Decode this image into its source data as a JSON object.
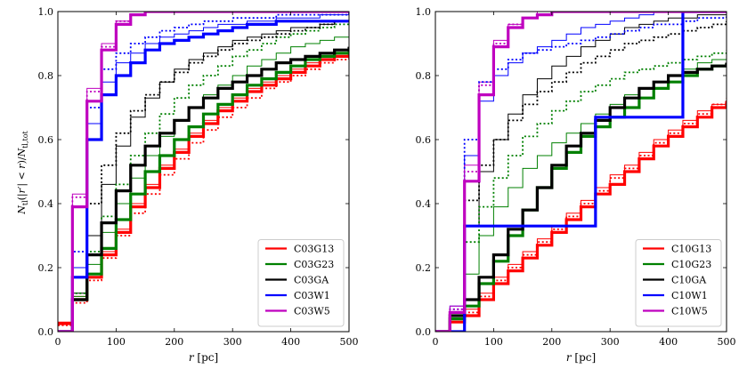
{
  "chart_data": [
    {
      "type": "line",
      "panel": "left",
      "ylabel": "N_tl(|r'| < r)/N_tl,tot",
      "xlabel": "r [pc]",
      "xlim": [
        0,
        500
      ],
      "ylim": [
        0,
        1.0
      ],
      "xticks": [
        "0",
        "100",
        "200",
        "300",
        "400",
        "500"
      ],
      "yticks": [
        "0.0",
        "0.2",
        "0.4",
        "0.6",
        "0.8",
        "1.0"
      ],
      "legend_position": "lower-right",
      "series": [
        {
          "name": "C03G13",
          "color": "#ff0000",
          "x": [
            0,
            25,
            50,
            75,
            100,
            125,
            150,
            175,
            200,
            225,
            250,
            275,
            300,
            325,
            350,
            375,
            400,
            425,
            450,
            475,
            500
          ],
          "thick": [
            0.025,
            0.1,
            0.17,
            0.24,
            0.31,
            0.39,
            0.45,
            0.51,
            0.56,
            0.61,
            0.65,
            0.69,
            0.72,
            0.75,
            0.77,
            0.79,
            0.81,
            0.83,
            0.85,
            0.86,
            0.87
          ],
          "dotted": [
            0.02,
            0.09,
            0.16,
            0.23,
            0.3,
            0.37,
            0.43,
            0.49,
            0.54,
            0.59,
            0.63,
            0.67,
            0.7,
            0.73,
            0.76,
            0.78,
            0.8,
            0.82,
            0.84,
            0.85,
            0.86
          ],
          "thin": [
            0.03,
            0.11,
            0.18,
            0.25,
            0.32,
            0.4,
            0.46,
            0.52,
            0.57,
            0.62,
            0.66,
            0.7,
            0.73,
            0.76,
            0.78,
            0.8,
            0.82,
            0.84,
            0.85,
            0.87,
            0.88
          ]
        },
        {
          "name": "C03G23",
          "color": "#008000",
          "x": [
            0,
            25,
            50,
            75,
            100,
            125,
            150,
            175,
            200,
            225,
            250,
            275,
            300,
            325,
            350,
            375,
            400,
            425,
            450,
            475,
            500
          ],
          "thick": [
            0.0,
            0.1,
            0.18,
            0.26,
            0.35,
            0.43,
            0.5,
            0.55,
            0.6,
            0.64,
            0.68,
            0.71,
            0.74,
            0.77,
            0.79,
            0.81,
            0.83,
            0.85,
            0.86,
            0.87,
            0.88
          ],
          "dotted": [
            0.0,
            0.12,
            0.25,
            0.36,
            0.46,
            0.55,
            0.62,
            0.68,
            0.73,
            0.77,
            0.8,
            0.83,
            0.86,
            0.88,
            0.9,
            0.92,
            0.93,
            0.94,
            0.95,
            0.96,
            0.97
          ],
          "thin": [
            0.0,
            0.11,
            0.21,
            0.31,
            0.4,
            0.48,
            0.55,
            0.61,
            0.66,
            0.7,
            0.74,
            0.77,
            0.8,
            0.83,
            0.85,
            0.87,
            0.89,
            0.9,
            0.91,
            0.92,
            0.93
          ]
        },
        {
          "name": "C03GA",
          "color": "#000000",
          "x": [
            0,
            25,
            50,
            75,
            100,
            125,
            150,
            175,
            200,
            225,
            250,
            275,
            300,
            325,
            350,
            375,
            400,
            425,
            450,
            475,
            500
          ],
          "thick": [
            0.0,
            0.1,
            0.24,
            0.34,
            0.44,
            0.52,
            0.58,
            0.62,
            0.66,
            0.7,
            0.73,
            0.76,
            0.78,
            0.8,
            0.82,
            0.84,
            0.85,
            0.86,
            0.87,
            0.88,
            0.89
          ],
          "dotted": [
            0.0,
            0.17,
            0.4,
            0.52,
            0.62,
            0.69,
            0.74,
            0.78,
            0.81,
            0.84,
            0.86,
            0.88,
            0.9,
            0.91,
            0.92,
            0.93,
            0.94,
            0.95,
            0.96,
            0.97,
            0.97
          ],
          "thin": [
            0.0,
            0.12,
            0.3,
            0.46,
            0.58,
            0.67,
            0.73,
            0.78,
            0.82,
            0.85,
            0.87,
            0.89,
            0.91,
            0.92,
            0.93,
            0.94,
            0.95,
            0.95,
            0.96,
            0.97,
            0.98
          ]
        },
        {
          "name": "C03W1",
          "color": "#0000ff",
          "x": [
            0,
            25,
            50,
            75,
            100,
            125,
            150,
            175,
            200,
            225,
            250,
            275,
            300,
            325,
            350,
            375,
            400,
            425,
            450,
            475,
            500
          ],
          "thick": [
            0.0,
            0.17,
            0.6,
            0.74,
            0.8,
            0.84,
            0.88,
            0.9,
            0.91,
            0.92,
            0.93,
            0.94,
            0.95,
            0.96,
            0.96,
            0.97,
            0.97,
            0.97,
            0.97,
            0.97,
            0.97
          ],
          "dotted": [
            0.0,
            0.25,
            0.7,
            0.82,
            0.87,
            0.9,
            0.92,
            0.94,
            0.95,
            0.96,
            0.97,
            0.97,
            0.98,
            0.98,
            0.98,
            0.99,
            0.99,
            0.99,
            0.99,
            0.99,
            1.0
          ],
          "thin": [
            0.0,
            0.2,
            0.65,
            0.78,
            0.84,
            0.87,
            0.9,
            0.92,
            0.93,
            0.94,
            0.95,
            0.96,
            0.96,
            0.97,
            0.97,
            0.98,
            0.98,
            0.98,
            0.99,
            0.99,
            0.99
          ]
        },
        {
          "name": "C03W5",
          "color": "#bf00bf",
          "x": [
            0,
            25,
            50,
            75,
            100,
            125,
            150,
            175,
            200,
            225,
            250,
            275,
            300,
            325,
            350,
            375,
            400,
            425,
            450,
            475,
            500
          ],
          "thick": [
            0.0,
            0.39,
            0.72,
            0.88,
            0.96,
            0.99,
            1.0,
            1.0,
            1.0,
            1.0,
            1.0,
            1.0,
            1.0,
            1.0,
            1.0,
            1.0,
            1.0,
            1.0,
            1.0,
            1.0,
            1.0
          ],
          "dotted": [
            0.0,
            0.42,
            0.75,
            0.89,
            0.97,
            0.99,
            1.0,
            1.0,
            1.0,
            1.0,
            1.0,
            1.0,
            1.0,
            1.0,
            1.0,
            1.0,
            1.0,
            1.0,
            1.0,
            1.0,
            1.0
          ],
          "thin": [
            0.0,
            0.43,
            0.76,
            0.9,
            0.97,
            0.99,
            1.0,
            1.0,
            1.0,
            1.0,
            1.0,
            1.0,
            1.0,
            1.0,
            1.0,
            1.0,
            1.0,
            1.0,
            1.0,
            1.0,
            1.0
          ]
        }
      ]
    },
    {
      "type": "line",
      "panel": "right",
      "ylabel": "",
      "xlabel": "r [pc]",
      "xlim": [
        0,
        500
      ],
      "ylim": [
        0,
        1.0
      ],
      "xticks": [
        "0",
        "100",
        "200",
        "300",
        "400",
        "500"
      ],
      "yticks": [
        "0.0",
        "0.2",
        "0.4",
        "0.6",
        "0.8",
        "1.0"
      ],
      "legend_position": "lower-right",
      "series": [
        {
          "name": "C10G13",
          "color": "#ff0000",
          "x": [
            0,
            25,
            50,
            75,
            100,
            125,
            150,
            175,
            200,
            225,
            250,
            275,
            300,
            325,
            350,
            375,
            400,
            425,
            450,
            475,
            500
          ],
          "thick": [
            0.0,
            0.03,
            0.05,
            0.1,
            0.15,
            0.19,
            0.23,
            0.27,
            0.31,
            0.35,
            0.39,
            0.43,
            0.46,
            0.5,
            0.54,
            0.58,
            0.61,
            0.64,
            0.67,
            0.7,
            0.72
          ],
          "dotted": [
            0.0,
            0.03,
            0.06,
            0.11,
            0.16,
            0.2,
            0.24,
            0.28,
            0.32,
            0.36,
            0.4,
            0.44,
            0.48,
            0.51,
            0.55,
            0.59,
            0.62,
            0.65,
            0.68,
            0.71,
            0.73
          ],
          "thin": [
            0.0,
            0.04,
            0.07,
            0.12,
            0.17,
            0.21,
            0.25,
            0.29,
            0.33,
            0.37,
            0.41,
            0.45,
            0.49,
            0.52,
            0.56,
            0.6,
            0.63,
            0.66,
            0.69,
            0.71,
            0.73
          ]
        },
        {
          "name": "C10G23",
          "color": "#008000",
          "x": [
            0,
            25,
            50,
            75,
            100,
            125,
            150,
            175,
            200,
            225,
            250,
            275,
            300,
            325,
            350,
            375,
            400,
            425,
            450,
            475,
            500
          ],
          "thick": [
            0.0,
            0.04,
            0.08,
            0.15,
            0.22,
            0.3,
            0.38,
            0.45,
            0.51,
            0.56,
            0.61,
            0.64,
            0.67,
            0.7,
            0.73,
            0.76,
            0.78,
            0.8,
            0.82,
            0.83,
            0.84
          ],
          "dotted": [
            0.0,
            0.05,
            0.28,
            0.39,
            0.48,
            0.55,
            0.61,
            0.65,
            0.69,
            0.72,
            0.75,
            0.77,
            0.79,
            0.81,
            0.82,
            0.83,
            0.84,
            0.85,
            0.86,
            0.87,
            0.88
          ],
          "thin": [
            0.0,
            0.05,
            0.18,
            0.3,
            0.39,
            0.45,
            0.51,
            0.55,
            0.59,
            0.62,
            0.65,
            0.68,
            0.71,
            0.74,
            0.76,
            0.78,
            0.8,
            0.82,
            0.84,
            0.85,
            0.86
          ]
        },
        {
          "name": "C10GA",
          "color": "#000000",
          "x": [
            0,
            25,
            50,
            75,
            100,
            125,
            150,
            175,
            200,
            225,
            250,
            275,
            300,
            325,
            350,
            375,
            400,
            425,
            450,
            475,
            500
          ],
          "thick": [
            0.0,
            0.05,
            0.1,
            0.17,
            0.24,
            0.32,
            0.38,
            0.45,
            0.52,
            0.58,
            0.62,
            0.66,
            0.7,
            0.73,
            0.76,
            0.78,
            0.8,
            0.81,
            0.82,
            0.83,
            0.84
          ],
          "dotted": [
            0.0,
            0.06,
            0.41,
            0.52,
            0.6,
            0.66,
            0.71,
            0.75,
            0.78,
            0.81,
            0.84,
            0.86,
            0.88,
            0.9,
            0.91,
            0.92,
            0.93,
            0.94,
            0.95,
            0.96,
            0.97
          ],
          "thin": [
            0.0,
            0.06,
            0.33,
            0.5,
            0.6,
            0.68,
            0.74,
            0.79,
            0.83,
            0.86,
            0.89,
            0.91,
            0.93,
            0.95,
            0.96,
            0.97,
            0.98,
            0.98,
            0.99,
            0.99,
            1.0
          ]
        },
        {
          "name": "C10W1",
          "color": "#0000ff",
          "x": [
            0,
            25,
            50,
            75,
            100,
            125,
            150,
            175,
            200,
            225,
            250,
            275,
            300,
            325,
            350,
            375,
            400,
            425,
            450,
            475,
            500
          ],
          "thick": [
            0.0,
            0.0,
            0.33,
            0.33,
            0.33,
            0.33,
            0.33,
            0.33,
            0.33,
            0.33,
            0.33,
            0.67,
            0.67,
            0.67,
            0.67,
            0.67,
            0.67,
            1.0,
            1.0,
            1.0,
            1.0
          ],
          "dotted": [
            0.0,
            0.07,
            0.6,
            0.78,
            0.82,
            0.85,
            0.87,
            0.88,
            0.89,
            0.9,
            0.91,
            0.92,
            0.93,
            0.94,
            0.95,
            0.96,
            0.96,
            0.97,
            0.98,
            0.98,
            0.99
          ],
          "thin": [
            0.0,
            0.08,
            0.55,
            0.72,
            0.8,
            0.84,
            0.87,
            0.89,
            0.91,
            0.93,
            0.95,
            0.96,
            0.97,
            0.98,
            0.99,
            1.0,
            1.0,
            1.0,
            1.0,
            1.0,
            1.0
          ]
        },
        {
          "name": "C10W5",
          "color": "#bf00bf",
          "x": [
            0,
            25,
            50,
            75,
            100,
            125,
            150,
            175,
            200,
            225,
            250,
            275,
            300,
            325,
            350,
            375,
            400,
            425,
            450,
            475,
            500
          ],
          "thick": [
            0.0,
            0.06,
            0.47,
            0.74,
            0.89,
            0.95,
            0.98,
            0.99,
            1.0,
            1.0,
            1.0,
            1.0,
            1.0,
            1.0,
            1.0,
            1.0,
            1.0,
            1.0,
            1.0,
            1.0,
            1.0
          ],
          "dotted": [
            0.0,
            0.07,
            0.5,
            0.77,
            0.9,
            0.96,
            0.98,
            0.99,
            1.0,
            1.0,
            1.0,
            1.0,
            1.0,
            1.0,
            1.0,
            1.0,
            1.0,
            1.0,
            1.0,
            1.0,
            1.0
          ],
          "thin": [
            0.0,
            0.08,
            0.52,
            0.78,
            0.91,
            0.96,
            0.98,
            1.0,
            1.0,
            1.0,
            1.0,
            1.0,
            1.0,
            1.0,
            1.0,
            1.0,
            1.0,
            1.0,
            1.0,
            1.0,
            1.0
          ]
        }
      ]
    }
  ]
}
